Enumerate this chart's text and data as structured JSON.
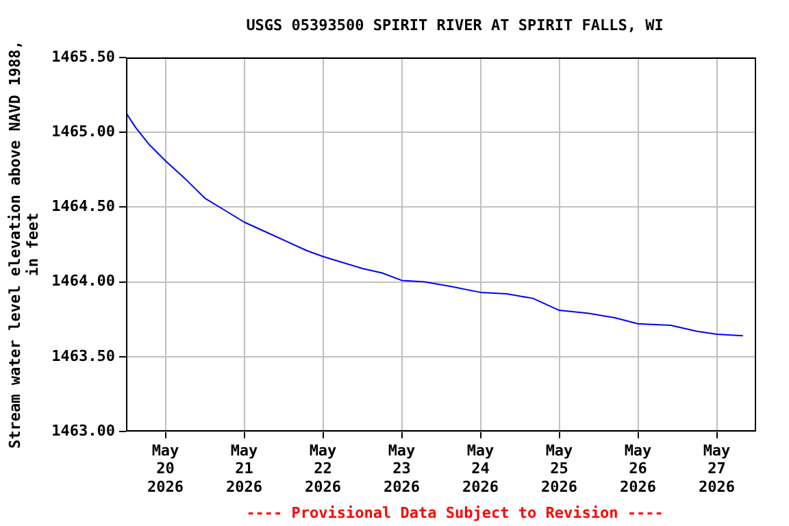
{
  "chart_data": {
    "type": "line",
    "title": "USGS 05393500 SPIRIT RIVER AT SPIRIT FALLS, WI",
    "ylabel": "Stream water level elevation above NAVD 1988, in feet",
    "annotations": [
      "---- Provisional Data Subject to Revision ----"
    ],
    "x": [
      "2026-05-19T12:00",
      "2026-05-19T15:00",
      "2026-05-19T19:00",
      "2026-05-20T00:00",
      "2026-05-20T06:00",
      "2026-05-20T12:00",
      "2026-05-20T18:00",
      "2026-05-21T00:00",
      "2026-05-21T07:00",
      "2026-05-21T13:00",
      "2026-05-21T19:00",
      "2026-05-22T00:00",
      "2026-05-22T06:00",
      "2026-05-22T12:00",
      "2026-05-22T18:00",
      "2026-05-23T00:00",
      "2026-05-23T07:00",
      "2026-05-23T15:00",
      "2026-05-24T00:00",
      "2026-05-24T08:00",
      "2026-05-24T16:00",
      "2026-05-25T00:00",
      "2026-05-25T09:00",
      "2026-05-25T17:00",
      "2026-05-26T00:00",
      "2026-05-26T10:00",
      "2026-05-26T18:00",
      "2026-05-27T00:00",
      "2026-05-27T08:00"
    ],
    "series": [
      {
        "color": "#0000ff",
        "values": [
          1465.13,
          1465.03,
          1464.92,
          1464.81,
          1464.69,
          1464.56,
          1464.48,
          1464.4,
          1464.33,
          1464.27,
          1464.21,
          1464.17,
          1464.13,
          1464.09,
          1464.06,
          1464.01,
          1464.0,
          1463.97,
          1463.93,
          1463.92,
          1463.89,
          1463.81,
          1463.79,
          1463.76,
          1463.72,
          1463.71,
          1463.67,
          1463.65,
          1463.64
        ]
      }
    ],
    "xlim": [
      "2026-05-19T12:00",
      "2026-05-27T12:00"
    ],
    "xticks": [
      {
        "value": "2026-05-20",
        "label": "May 20 2026"
      },
      {
        "value": "2026-05-21",
        "label": "May 21 2026"
      },
      {
        "value": "2026-05-22",
        "label": "May 22 2026"
      },
      {
        "value": "2026-05-23",
        "label": "May 23 2026"
      },
      {
        "value": "2026-05-24",
        "label": "May 24 2026"
      },
      {
        "value": "2026-05-25",
        "label": "May 25 2026"
      },
      {
        "value": "2026-05-26",
        "label": "May 26 2026"
      },
      {
        "value": "2026-05-27",
        "label": "May 27 2026"
      }
    ],
    "ylim": [
      1463.0,
      1465.5
    ],
    "yticks": [
      {
        "value": 1463.0,
        "label": "1463.00"
      },
      {
        "value": 1463.5,
        "label": "1463.50"
      },
      {
        "value": 1464.0,
        "label": "1464.00"
      },
      {
        "value": 1464.5,
        "label": "1464.50"
      },
      {
        "value": 1465.0,
        "label": "1465.00"
      },
      {
        "value": 1465.5,
        "label": "1465.50"
      }
    ],
    "grid": true,
    "legend": false,
    "marker": "none",
    "line_style": "solid"
  }
}
